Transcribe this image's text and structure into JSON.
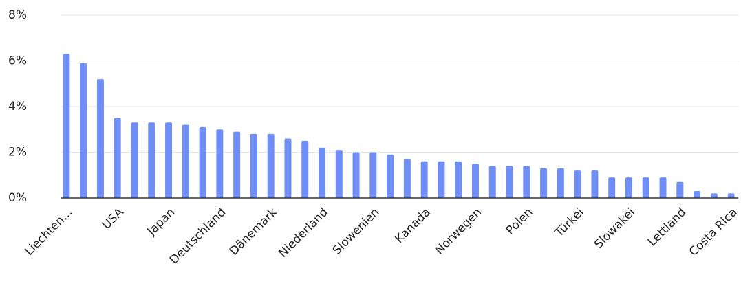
{
  "chart_data": {
    "type": "bar",
    "categories": [
      "Liechten...",
      null,
      null,
      "USA",
      null,
      null,
      "Japan",
      null,
      null,
      "Deutschland",
      null,
      null,
      "Dänemark",
      null,
      null,
      "Niederland",
      null,
      null,
      "Slowenien",
      null,
      null,
      "Kanada",
      null,
      null,
      "Norwegen",
      null,
      null,
      "Polen",
      null,
      null,
      "Türkei",
      null,
      null,
      "Slowakei",
      null,
      null,
      "Lettland",
      null,
      null,
      "Costa Rica"
    ],
    "values": [
      6.3,
      5.9,
      5.2,
      3.5,
      3.3,
      3.3,
      3.3,
      3.2,
      3.1,
      3.0,
      2.9,
      2.8,
      2.8,
      2.6,
      2.5,
      2.2,
      2.1,
      2.0,
      2.0,
      1.9,
      1.7,
      1.6,
      1.6,
      1.6,
      1.5,
      1.4,
      1.4,
      1.4,
      1.3,
      1.3,
      1.2,
      1.2,
      0.9,
      0.9,
      0.9,
      0.9,
      0.7,
      0.3,
      0.2,
      0.2
    ],
    "color": "#6f8ff7",
    "ylim": [
      0,
      8
    ],
    "yticks": [
      {
        "value": 0,
        "label": "0%"
      },
      {
        "value": 2,
        "label": "2%"
      },
      {
        "value": 4,
        "label": "4%"
      },
      {
        "value": 6,
        "label": "6%"
      },
      {
        "value": 8,
        "label": "8%"
      }
    ],
    "grid": true
  }
}
